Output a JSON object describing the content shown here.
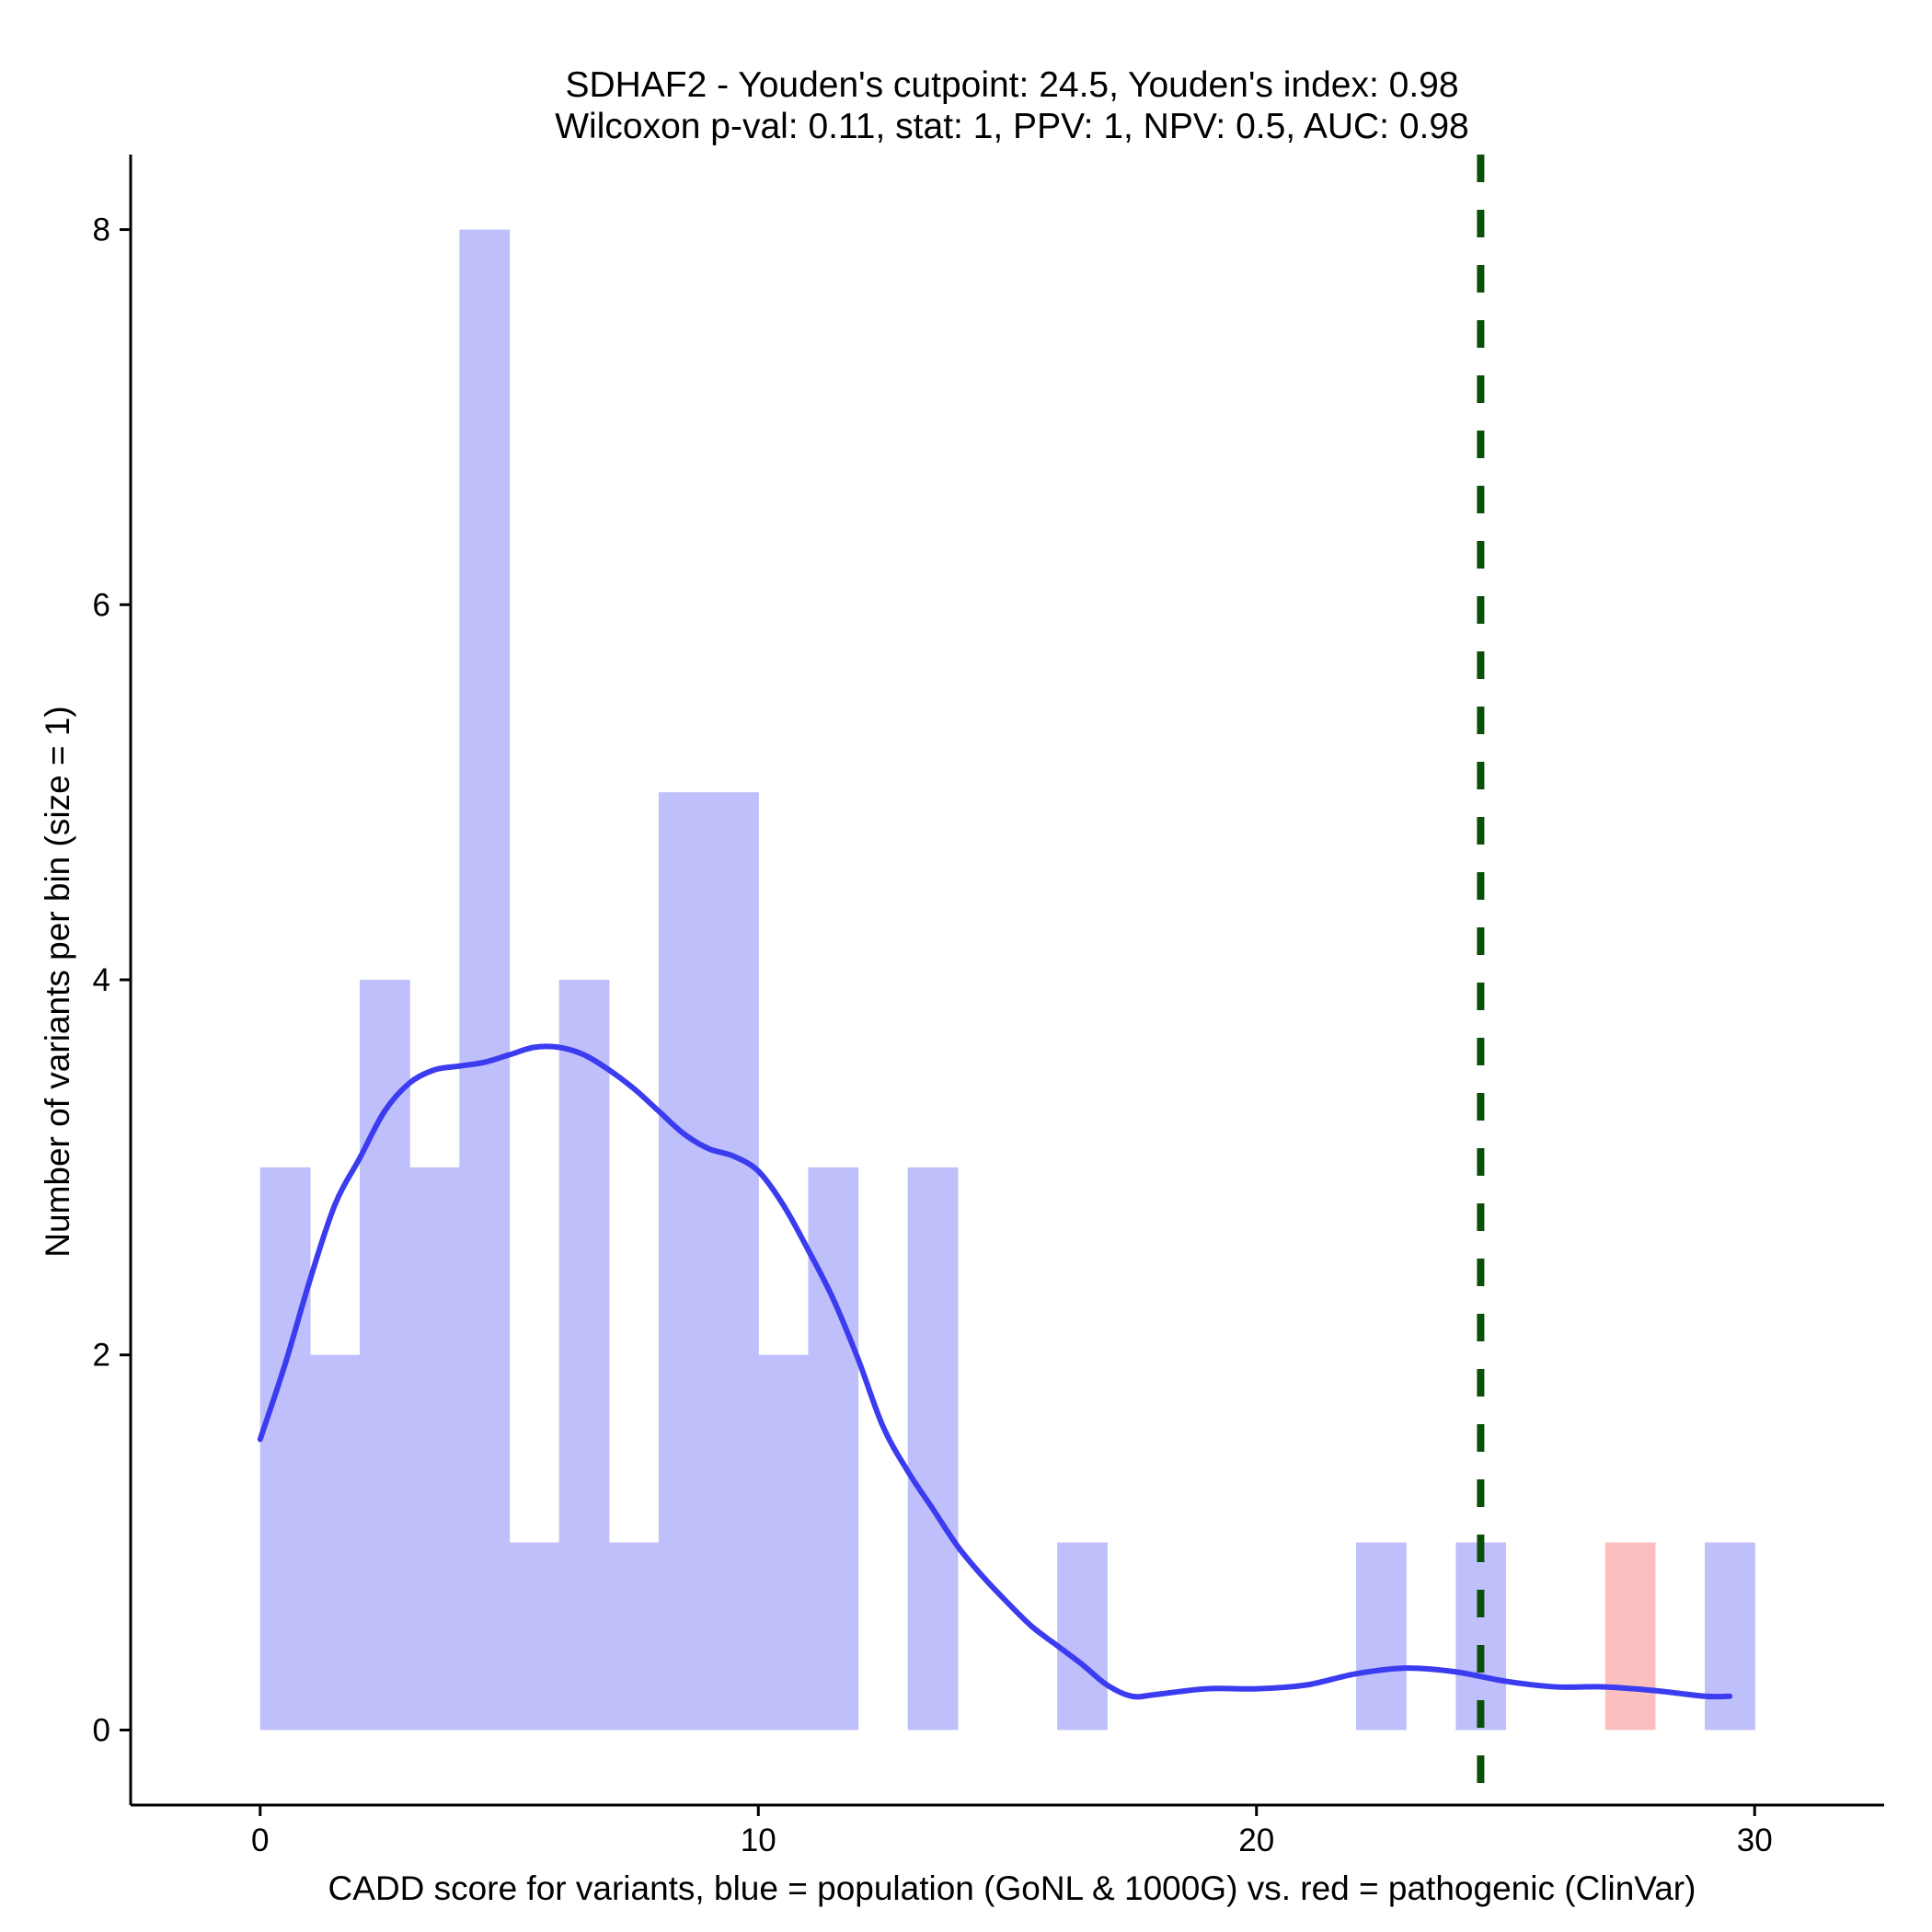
{
  "chart_data": {
    "type": "bar",
    "title_line1": "SDHAF2 - Youden's cutpoint: 24.5, Youden's index: 0.98",
    "title_line2": "Wilcoxon p-val: 0.11, stat: 1, PPV: 1, NPV: 0.5, AUC: 0.98",
    "xlabel": "CADD score for variants, blue = population (GoNL & 1000G) vs. red = pathogenic (ClinVar)",
    "ylabel": "Number of variants per bin (size = 1)",
    "xlim": [
      -2.6,
      32.6
    ],
    "ylim": [
      -0.4,
      8.4
    ],
    "x_ticks": [
      0,
      10,
      20,
      30
    ],
    "y_ticks": [
      0,
      2,
      4,
      6,
      8
    ],
    "bin_width": 1,
    "colors": {
      "population": "#bfbffb",
      "pathogenic": "#fbbfc0",
      "density": "#3b3bf0",
      "cutpoint": "#0a500a"
    },
    "population_bins": {
      "bin_start": [
        0,
        1,
        2,
        3,
        4,
        5,
        6,
        7,
        8,
        9,
        10,
        11,
        13,
        16,
        22,
        24,
        29
      ],
      "counts": [
        3,
        2,
        4,
        3,
        8,
        1,
        4,
        1,
        5,
        5,
        2,
        3,
        3,
        1,
        1,
        1,
        1
      ]
    },
    "pathogenic_bins": {
      "bin_start": [
        27
      ],
      "counts": [
        1
      ]
    },
    "cutpoint": 24.5,
    "density_curve": {
      "x": [
        0,
        0.5,
        1,
        1.5,
        2,
        2.5,
        3,
        3.5,
        4,
        4.5,
        5,
        5.5,
        6,
        6.5,
        7,
        7.5,
        8,
        8.5,
        9,
        9.5,
        10,
        10.5,
        11,
        11.5,
        12,
        12.5,
        13,
        13.5,
        14,
        14.5,
        15,
        15.5,
        16,
        16.5,
        17,
        17.5,
        18,
        19,
        20,
        21,
        22,
        23,
        24,
        25,
        26,
        27,
        28,
        29,
        29.5
      ],
      "y": [
        1.55,
        1.95,
        2.4,
        2.8,
        3.05,
        3.3,
        3.45,
        3.52,
        3.54,
        3.56,
        3.6,
        3.64,
        3.64,
        3.6,
        3.52,
        3.42,
        3.3,
        3.18,
        3.1,
        3.06,
        2.98,
        2.8,
        2.56,
        2.3,
        1.98,
        1.62,
        1.38,
        1.18,
        0.98,
        0.82,
        0.68,
        0.55,
        0.45,
        0.35,
        0.24,
        0.18,
        0.19,
        0.22,
        0.22,
        0.24,
        0.3,
        0.33,
        0.31,
        0.26,
        0.23,
        0.23,
        0.21,
        0.18,
        0.18
      ]
    }
  }
}
